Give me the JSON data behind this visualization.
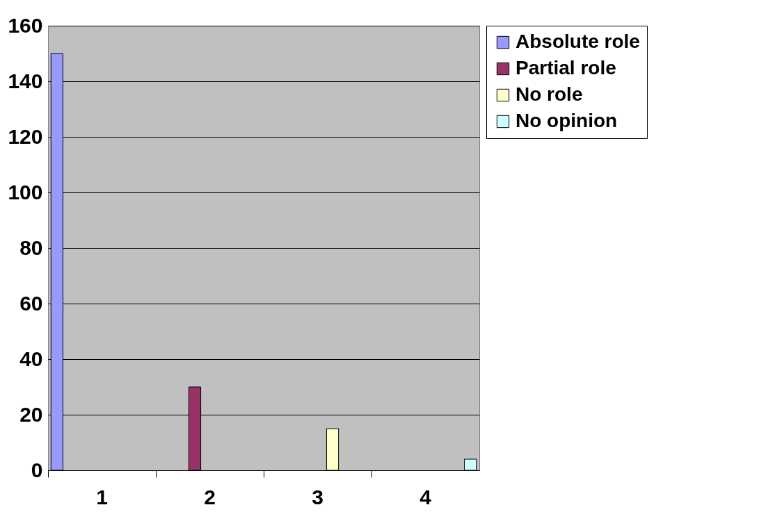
{
  "chart_data": {
    "type": "bar",
    "categories": [
      "1",
      "2",
      "3",
      "4"
    ],
    "series": [
      {
        "name": "Absolute role",
        "color": "#9999ff",
        "values": [
          150,
          null,
          null,
          null
        ]
      },
      {
        "name": "Partial role",
        "color": "#993366",
        "values": [
          null,
          30,
          null,
          null
        ]
      },
      {
        "name": "No role",
        "color": "#ffffcc",
        "values": [
          null,
          null,
          15,
          null
        ]
      },
      {
        "name": "No opinion",
        "color": "#ccffff",
        "values": [
          null,
          null,
          null,
          4
        ]
      }
    ],
    "ylim": [
      0,
      160
    ],
    "yticks": [
      0,
      20,
      40,
      60,
      80,
      100,
      120,
      140,
      160
    ],
    "grid": "y",
    "legend": "right"
  }
}
